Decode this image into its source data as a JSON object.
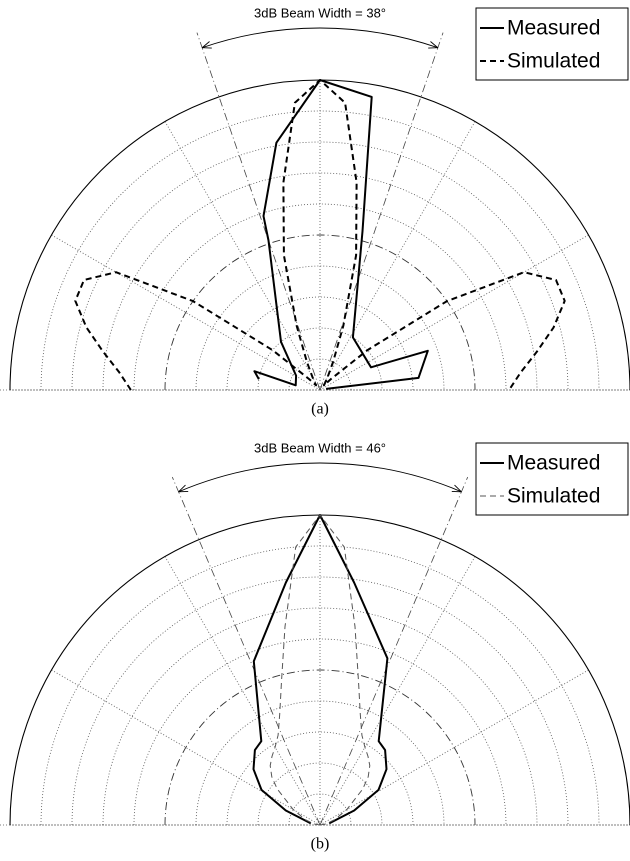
{
  "chart_data": [
    {
      "type": "polar",
      "annotation": "3dB Beam Width = 38°",
      "beam_angles": [
        -19,
        19
      ],
      "caption": "(a)",
      "legend": "upper right",
      "thetalim": [
        -90,
        90
      ],
      "thetaticks": [
        -90,
        -60,
        -30,
        0,
        30,
        60,
        90
      ],
      "rlim": [
        0,
        1
      ],
      "rticks": [
        0.1,
        0.2,
        0.3,
        0.4,
        0.6,
        0.7,
        0.8,
        0.9
      ],
      "reference_ring": 0.5,
      "grid": true,
      "series": [
        {
          "name": "Measured",
          "color": "#000000",
          "dash": "solid",
          "width": 2,
          "x": [
            -80,
            -74,
            -79,
            -59,
            -39,
            -19,
            -18,
            -10,
            0,
            10,
            15,
            32,
            66,
            70,
            83,
            80
          ],
          "values": [
            0.2,
            0.22,
            0.08,
            0.09,
            0.2,
            0.51,
            0.59,
            0.81,
            1,
            0.96,
            0.53,
            0.2,
            0.18,
            0.37,
            0.32,
            0.02
          ]
        },
        {
          "name": "Simulated",
          "color": "#000000",
          "dash": "dashed",
          "width": 2,
          "x": [
            -90,
            -85,
            -80,
            -75,
            -70,
            -65,
            -60,
            -55,
            -50,
            -45,
            -40,
            -35,
            -30,
            -25,
            -20,
            -15,
            -10,
            -5,
            0,
            5,
            10,
            15,
            20,
            25,
            30,
            35,
            40,
            45,
            50,
            55,
            60,
            65,
            70,
            75,
            80,
            85,
            90
          ],
          "values": [
            0.61,
            0.65,
            0.71,
            0.78,
            0.84,
            0.84,
            0.76,
            0.5,
            0.2,
            0.05,
            0.02,
            0.03,
            0.05,
            0.1,
            0.22,
            0.45,
            0.68,
            0.93,
            1,
            0.93,
            0.68,
            0.45,
            0.22,
            0.1,
            0.05,
            0.03,
            0.02,
            0.05,
            0.2,
            0.5,
            0.76,
            0.84,
            0.84,
            0.78,
            0.71,
            0.65,
            0.61
          ]
        }
      ]
    },
    {
      "type": "polar",
      "annotation": "3dB Beam Width = 46°",
      "beam_angles": [
        -23,
        23
      ],
      "caption": "(b)",
      "legend": "upper right",
      "thetalim": [
        -90,
        90
      ],
      "thetaticks": [
        -90,
        -60,
        -30,
        0,
        30,
        60,
        90
      ],
      "rlim": [
        0,
        1
      ],
      "rticks": [
        0.1,
        0.2,
        0.3,
        0.4,
        0.6,
        0.7,
        0.8,
        0.9
      ],
      "reference_ring": 0.5,
      "grid": true,
      "series": [
        {
          "name": "Measured",
          "color": "#000000",
          "dash": "solid",
          "width": 2,
          "x": [
            -80,
            -67,
            -59,
            -50,
            -41,
            -35,
            -22,
            -8,
            0,
            8,
            22,
            35,
            41,
            50,
            59,
            67,
            80
          ],
          "values": [
            0.03,
            0.12,
            0.22,
            0.28,
            0.32,
            0.33,
            0.57,
            0.79,
            1,
            0.79,
            0.58,
            0.33,
            0.32,
            0.28,
            0.22,
            0.12,
            0.03
          ]
        },
        {
          "name": "Simulated",
          "color": "#555555",
          "dash": "dashed",
          "width": 1,
          "x": [
            -90,
            -80,
            -70,
            -60,
            -50,
            -45,
            -40,
            -35,
            -30,
            -25,
            -20,
            -15,
            -10,
            -5,
            0,
            5,
            10,
            15,
            20,
            25,
            30,
            35,
            40,
            45,
            50,
            60,
            70,
            80,
            90
          ],
          "values": [
            0,
            0.02,
            0.05,
            0.1,
            0.18,
            0.22,
            0.25,
            0.27,
            0.29,
            0.32,
            0.38,
            0.48,
            0.65,
            0.9,
            1,
            0.9,
            0.65,
            0.48,
            0.38,
            0.32,
            0.29,
            0.27,
            0.25,
            0.22,
            0.18,
            0.1,
            0.05,
            0.02,
            0
          ]
        }
      ]
    }
  ]
}
